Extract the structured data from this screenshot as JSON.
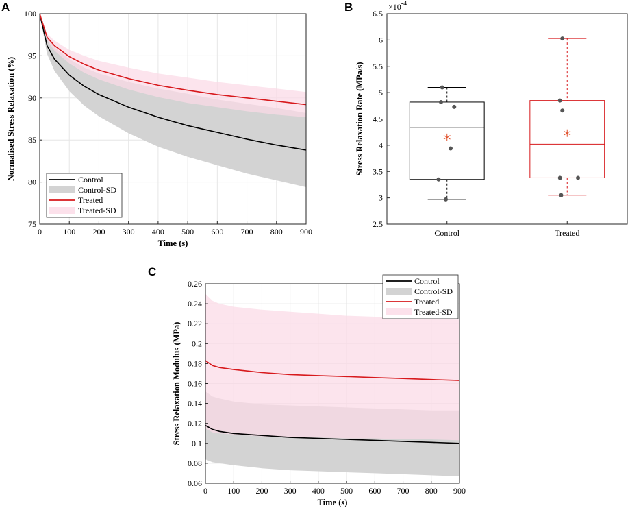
{
  "chart_data": [
    {
      "panel": "A",
      "type": "line",
      "xlabel": "Time (s)",
      "ylabel": "Normalised Stress Relaxation (%)",
      "xlim": [
        0,
        900
      ],
      "ylim": [
        75,
        100
      ],
      "xticks": [
        0,
        100,
        200,
        300,
        400,
        500,
        600,
        700,
        800,
        900
      ],
      "yticks": [
        75,
        80,
        85,
        90,
        95,
        100
      ],
      "grid": true,
      "legend_position": "bottom-left",
      "legend": [
        "Control",
        "Control-SD",
        "Treated",
        "Treated-SD"
      ],
      "x": [
        0,
        25,
        50,
        100,
        150,
        200,
        300,
        400,
        500,
        600,
        700,
        800,
        900
      ],
      "series": [
        {
          "name": "Control",
          "color": "#000000",
          "values": [
            100,
            96.2,
            94.6,
            92.7,
            91.4,
            90.4,
            88.9,
            87.7,
            86.7,
            85.9,
            85.1,
            84.4,
            83.8
          ]
        },
        {
          "name": "Control-SD",
          "kind": "band",
          "color": "#d3d3d3",
          "lower": [
            100,
            95.2,
            93.2,
            90.8,
            89.1,
            87.8,
            85.8,
            84.2,
            83.0,
            82.0,
            81.0,
            80.2,
            79.4
          ],
          "upper": [
            100,
            97.2,
            96.0,
            94.6,
            93.6,
            92.9,
            91.9,
            91.1,
            90.5,
            89.8,
            89.3,
            88.8,
            88.2
          ]
        },
        {
          "name": "Treated",
          "color": "#d7191c",
          "values": [
            100,
            97.2,
            96.2,
            94.9,
            94.0,
            93.3,
            92.3,
            91.5,
            90.9,
            90.4,
            90.0,
            89.6,
            89.2
          ]
        },
        {
          "name": "Treated-SD",
          "kind": "band",
          "color": "#fbd9e6",
          "lower": [
            100,
            96.8,
            95.6,
            94.1,
            93.0,
            92.2,
            91.0,
            90.1,
            89.4,
            88.9,
            88.4,
            88.0,
            87.7
          ],
          "upper": [
            100,
            97.6,
            96.8,
            95.7,
            95.0,
            94.4,
            93.6,
            92.9,
            92.4,
            91.9,
            91.5,
            91.1,
            90.7
          ]
        }
      ]
    },
    {
      "panel": "B",
      "type": "box",
      "ylabel": "Stress Relaxation Rate (MPa/s)",
      "exponent_label": "×10",
      "exponent_power": "-4",
      "ylim": [
        2.5,
        6.5
      ],
      "yticks": [
        "2.5",
        "3",
        "3.5",
        "4",
        "4.5",
        "5",
        "5.5",
        "6",
        "6.5"
      ],
      "categories": [
        "Control",
        "Treated"
      ],
      "boxes": [
        {
          "name": "Control",
          "color": "#000000",
          "whisker_low": 2.97,
          "q1": 3.35,
          "median": 4.34,
          "q3": 4.82,
          "whisker_high": 5.1,
          "mean": 4.15,
          "points": [
            [
              -0.04,
              5.1
            ],
            [
              -0.05,
              4.82
            ],
            [
              0.06,
              4.73
            ],
            [
              0.03,
              3.94
            ],
            [
              -0.07,
              3.35
            ],
            [
              -0.01,
              2.97
            ]
          ]
        },
        {
          "name": "Treated",
          "color": "#d7191c",
          "whisker_low": 3.05,
          "q1": 3.38,
          "median": 4.02,
          "q3": 4.85,
          "whisker_high": 6.03,
          "mean": 4.23,
          "points": [
            [
              -0.04,
              6.03
            ],
            [
              -0.06,
              4.85
            ],
            [
              -0.04,
              4.66
            ],
            [
              -0.06,
              3.38
            ],
            [
              0.09,
              3.38
            ],
            [
              -0.05,
              3.05
            ]
          ]
        }
      ]
    },
    {
      "panel": "C",
      "type": "line",
      "xlabel": "Time (s)",
      "ylabel": "Stress Relaxation Modulus (MPa)",
      "xlim": [
        0,
        900
      ],
      "ylim": [
        0.06,
        0.26
      ],
      "xticks": [
        0,
        100,
        200,
        300,
        400,
        500,
        600,
        700,
        800,
        900
      ],
      "yticks": [
        "0.06",
        "0.08",
        "0.1",
        "0.12",
        "0.14",
        "0.16",
        "0.18",
        "0.2",
        "0.22",
        "0.24",
        "0.26"
      ],
      "grid": true,
      "legend_position": "top-right",
      "legend": [
        "Control",
        "Control-SD",
        "Treated",
        "Treated-SD"
      ],
      "x": [
        0,
        25,
        50,
        100,
        200,
        300,
        400,
        500,
        600,
        700,
        800,
        900
      ],
      "series": [
        {
          "name": "Control",
          "color": "#000000",
          "values": [
            0.118,
            0.114,
            0.112,
            0.11,
            0.108,
            0.106,
            0.105,
            0.104,
            0.103,
            0.102,
            0.101,
            0.1
          ]
        },
        {
          "name": "Control-SD",
          "kind": "band",
          "color": "#d3d3d3",
          "lower": [
            0.084,
            0.081,
            0.08,
            0.078,
            0.075,
            0.073,
            0.072,
            0.071,
            0.07,
            0.069,
            0.068,
            0.067
          ],
          "upper": [
            0.152,
            0.147,
            0.145,
            0.142,
            0.139,
            0.138,
            0.137,
            0.136,
            0.135,
            0.134,
            0.133,
            0.133
          ]
        },
        {
          "name": "Treated",
          "color": "#d7191c",
          "values": [
            0.183,
            0.178,
            0.176,
            0.174,
            0.171,
            0.169,
            0.168,
            0.167,
            0.166,
            0.165,
            0.164,
            0.163
          ]
        },
        {
          "name": "Treated-SD",
          "kind": "band",
          "color": "#fbd9e6",
          "lower": [
            0.115,
            0.111,
            0.11,
            0.109,
            0.107,
            0.106,
            0.106,
            0.105,
            0.105,
            0.104,
            0.104,
            0.103
          ],
          "upper": [
            0.25,
            0.243,
            0.24,
            0.237,
            0.234,
            0.232,
            0.23,
            0.228,
            0.227,
            0.226,
            0.225,
            0.224
          ]
        }
      ]
    }
  ]
}
